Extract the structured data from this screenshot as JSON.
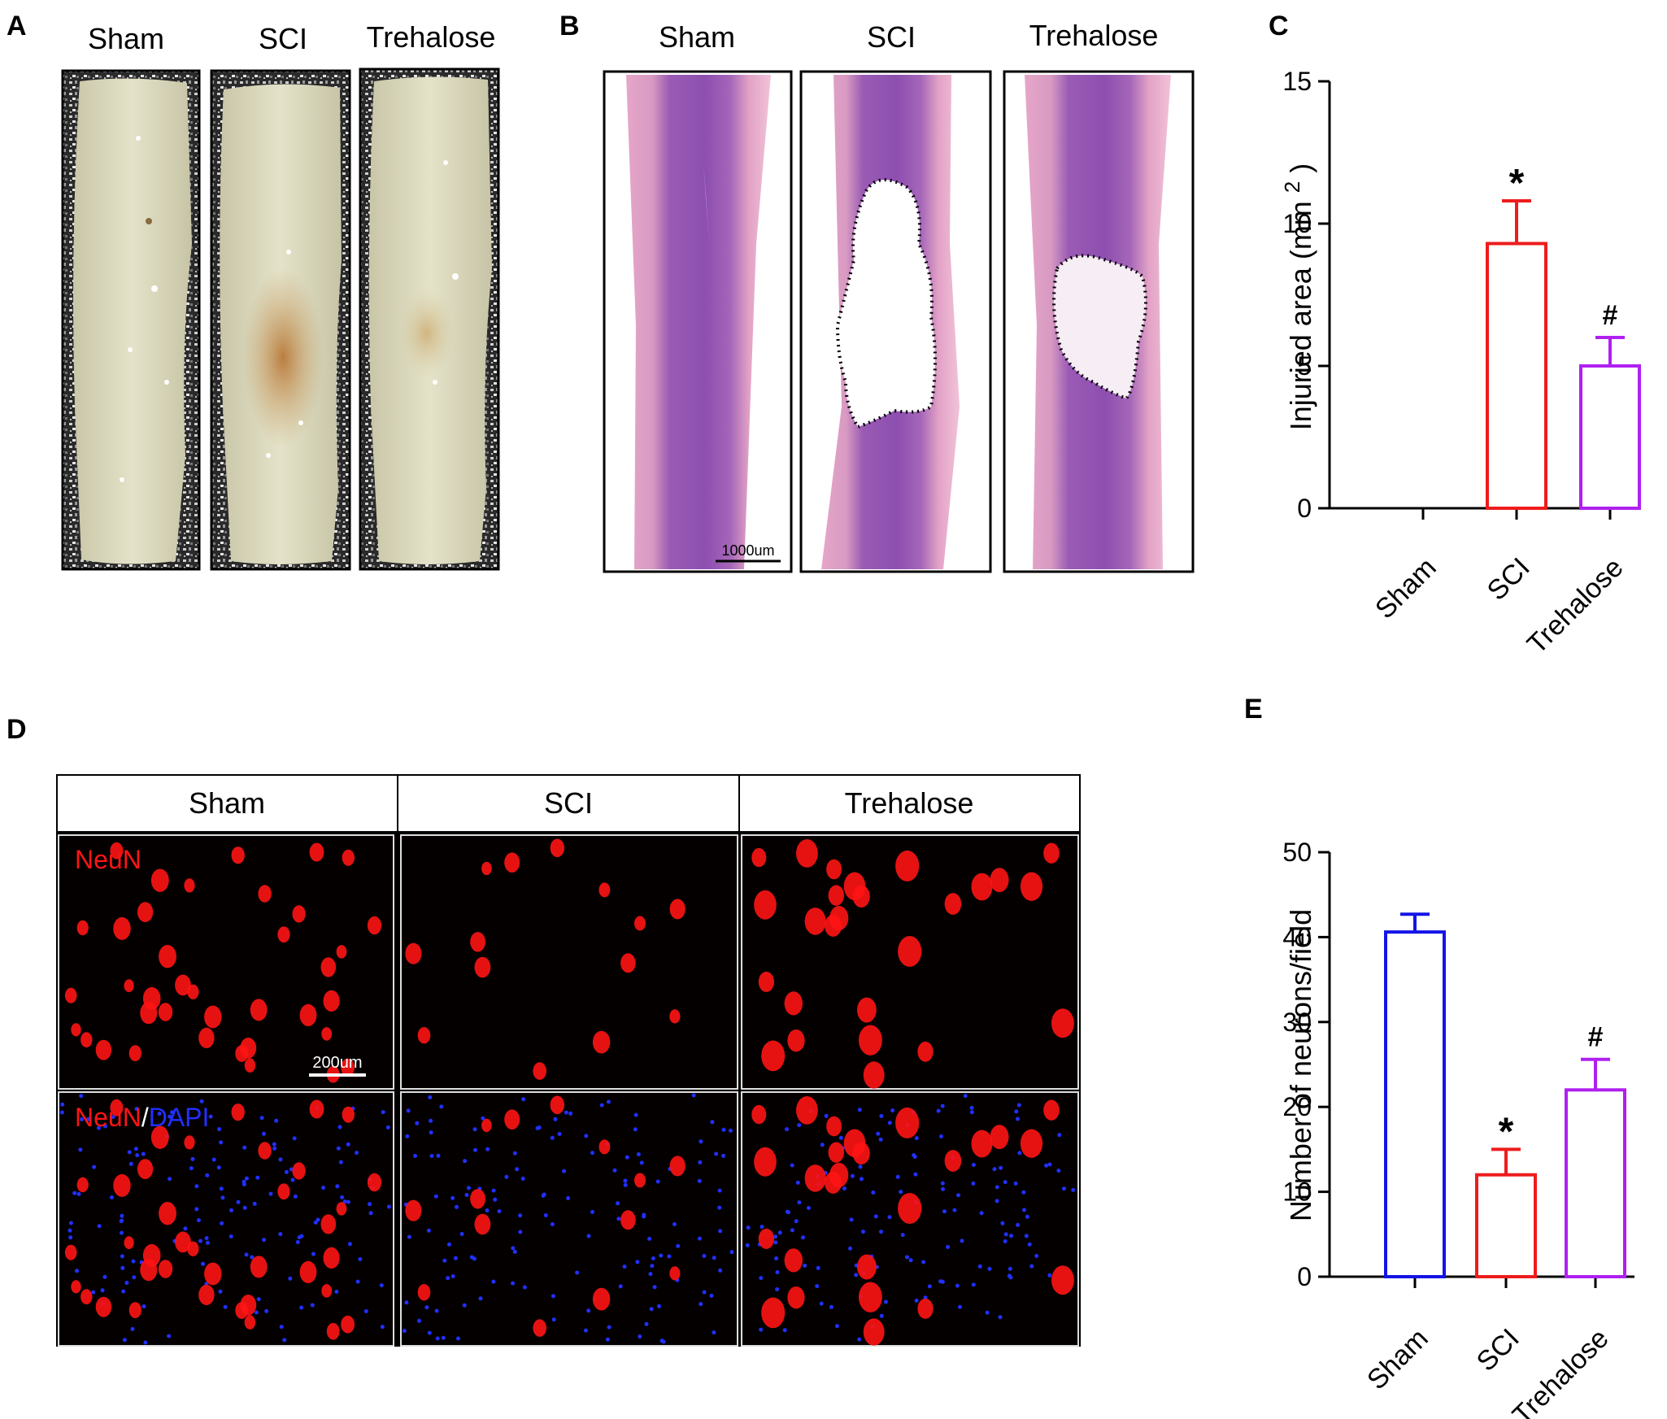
{
  "panel_letters": {
    "a": "A",
    "b": "B",
    "c": "C",
    "d": "D",
    "e": "E"
  },
  "panelA": {
    "labels": [
      "Sham",
      "SCI",
      "Trehalose"
    ]
  },
  "panelB": {
    "labels": [
      "Sham",
      "SCI",
      "Trehalose"
    ],
    "scale_bar": "1000um"
  },
  "panelD": {
    "headers": [
      "Sham",
      "SCI",
      "Trehalose"
    ],
    "stain_neun": "NeuN",
    "stain_slash": "/",
    "stain_dapi": "DAPI",
    "scale_bar": "200um"
  },
  "colors": {
    "sham": "#1414e6",
    "sci": "#ee1c1c",
    "trehalose": "#b020f0",
    "he_pink": "#d98fc0",
    "he_purple": "#8a4fb0",
    "neun_red": "#ff1414",
    "dapi_blue": "#2030ff"
  },
  "chart_data": [
    {
      "panel": "C",
      "type": "bar",
      "categories": [
        "Sham",
        "SCI",
        "Trehalose"
      ],
      "values": [
        0,
        9.3,
        5.0
      ],
      "errors": [
        0,
        1.5,
        1.0
      ],
      "annotations": [
        "",
        "*",
        "#"
      ],
      "ylabel": "Injuried area (mm 2 )",
      "ylabel_main": "Injuried area (mm",
      "ylabel_sup": "2",
      "ylabel_close": ")",
      "ylim": [
        0,
        15
      ],
      "yticks": [
        0,
        5,
        10,
        15
      ],
      "grid": false
    },
    {
      "panel": "E",
      "type": "bar",
      "categories": [
        "Sham",
        "SCI",
        "Trehalose"
      ],
      "values": [
        40.6,
        12.0,
        22.0
      ],
      "errors": [
        2.1,
        3.0,
        3.6
      ],
      "annotations": [
        "",
        "*",
        "#"
      ],
      "ylabel": "Number of neurons/field",
      "ylim": [
        0,
        50
      ],
      "yticks": [
        0,
        10,
        20,
        30,
        40,
        50
      ],
      "grid": false
    }
  ]
}
